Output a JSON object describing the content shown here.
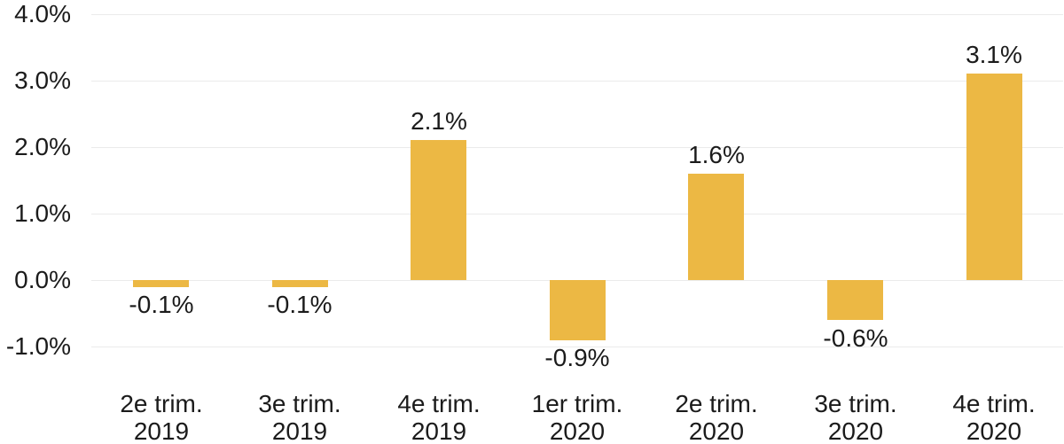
{
  "chart_data": {
    "type": "bar",
    "title": "",
    "categories": [
      [
        "2e trim.",
        "2019"
      ],
      [
        "3e trim.",
        "2019"
      ],
      [
        "4e trim.",
        "2019"
      ],
      [
        "1er trim.",
        "2020"
      ],
      [
        "2e trim.",
        "2020"
      ],
      [
        "3e trim.",
        "2020"
      ],
      [
        "4e trim.",
        "2020"
      ]
    ],
    "values": [
      -0.1,
      -0.1,
      2.1,
      -0.9,
      1.6,
      -0.6,
      3.1
    ],
    "value_labels": [
      "-0.1%",
      "-0.1%",
      "2.1%",
      "-0.9%",
      "1.6%",
      "-0.6%",
      "3.1%"
    ],
    "y_tick_values": [
      4,
      3,
      2,
      1,
      0,
      -1
    ],
    "y_tick_labels": [
      "4.0%",
      "3.0%",
      "2.0%",
      "1.0%",
      "0.0%",
      "-1.0%"
    ],
    "ylim": [
      -1,
      4
    ],
    "grid": true,
    "legend": false,
    "colors": {
      "bar": "#ECB844",
      "grid": "#EBEBEB",
      "text": "#1B1B1B",
      "background": "#FFFFFF"
    }
  }
}
